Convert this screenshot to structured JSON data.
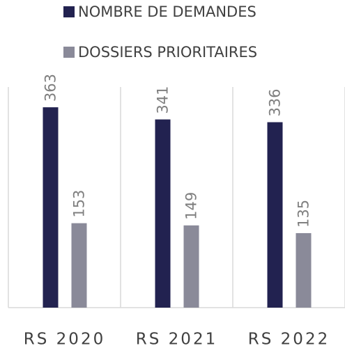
{
  "chart_data": {
    "type": "bar",
    "categories": [
      "RS 2020",
      "RS 2021",
      "RS 2022"
    ],
    "series": [
      {
        "name": "NOMBRE DE DEMANDES",
        "color": "#222250",
        "values": [
          363,
          341,
          336
        ]
      },
      {
        "name": "DOSSIERS PRIORITAIRES",
        "color": "#8a8a99",
        "values": [
          153,
          149,
          135
        ]
      }
    ]
  }
}
